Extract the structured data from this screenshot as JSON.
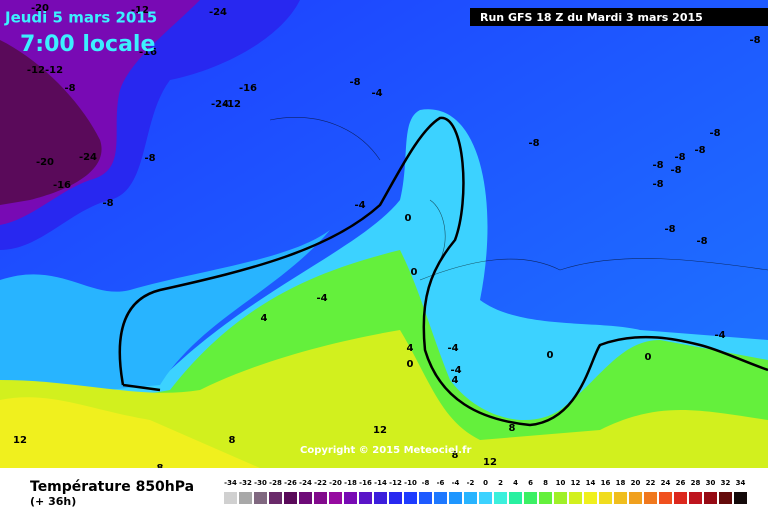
{
  "header": {
    "date": "Jeudi 5 mars 2015",
    "time": "7:00 locale",
    "run": "Run GFS 18 Z du Mardi 3 mars 2015"
  },
  "copyright": "Copyright © 2015 Meteociel.fr",
  "footer": {
    "title": "Température 850hPa",
    "lead": "(+ 36h)"
  },
  "legend": {
    "values": [
      -34,
      -32,
      -30,
      -28,
      -26,
      -24,
      -22,
      -20,
      -18,
      -16,
      -14,
      -12,
      -10,
      -8,
      -6,
      -4,
      -2,
      0,
      2,
      4,
      6,
      8,
      10,
      12,
      14,
      16,
      18,
      20,
      22,
      24,
      26,
      28,
      30,
      32,
      34
    ],
    "colors": [
      "#d0d0d0",
      "#a8a8a8",
      "#806880",
      "#6a2a6a",
      "#5a0a5a",
      "#6e0a78",
      "#820a8c",
      "#960aa0",
      "#780ab4",
      "#5a14c8",
      "#3c1edc",
      "#2828f0",
      "#1e3cff",
      "#1e5aff",
      "#1e78ff",
      "#1e96ff",
      "#28b4ff",
      "#3cd2ff",
      "#3cf0dc",
      "#28f0a0",
      "#3cf064",
      "#64f03c",
      "#a0f028",
      "#d2f01e",
      "#f0f01e",
      "#f0dc1e",
      "#f0be1e",
      "#f0a01e",
      "#f0781e",
      "#f0501e",
      "#dc281e",
      "#be141e",
      "#960a14",
      "#640a0a",
      "#140a0a"
    ]
  },
  "map_labels": [
    "-20",
    "-24",
    "-12",
    "-16",
    "-12-12",
    "-8",
    "-24",
    "-24",
    "-20",
    "-16",
    "-8",
    "-16",
    "-12",
    "-8",
    "-4",
    "-8",
    "-4",
    "-4",
    "0",
    "0",
    "4",
    "4",
    "4",
    "0",
    "-4",
    "-4",
    "0",
    "-8",
    "-8",
    "-8",
    "-8",
    "-8",
    "-8",
    "-8",
    "-8",
    "-8",
    "-4",
    "0",
    "12",
    "8",
    "8",
    "8",
    "12",
    "12",
    "8",
    "-8"
  ]
}
